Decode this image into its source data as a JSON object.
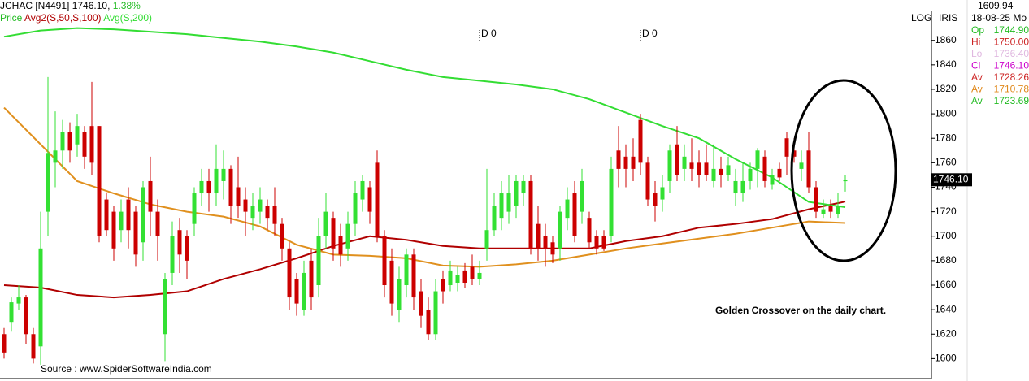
{
  "chart_data": {
    "type": "candlestick",
    "title": "JCHAC [N4491] 1746.10,",
    "change": "1.38%",
    "change_color": "#22bb22",
    "price_label": "Price",
    "up_color": "#33e033",
    "down_color": "#cc0000",
    "open": [
      1620,
      1630,
      1645,
      1650,
      1620,
      1610,
      1720,
      1760,
      1770,
      1785,
      1775,
      1785,
      1790,
      1790,
      1730,
      1720,
      1705,
      1730,
      1720,
      1695,
      1745,
      1720,
      1620,
      1670,
      1705,
      1700,
      1710,
      1735,
      1745,
      1735,
      1745,
      1755,
      1740,
      1730,
      1715,
      1720,
      1725,
      1725,
      1710,
      1690,
      1665,
      1640,
      1680,
      1660,
      1700,
      1715,
      1700,
      1690,
      1710,
      1730,
      1740,
      1760,
      1700,
      1680,
      1640,
      1660,
      1685,
      1655,
      1640,
      1620,
      1665,
      1660,
      1662,
      1672,
      1675,
      1665,
      1690,
      1705,
      1715,
      1720,
      1725,
      1735,
      1745,
      1710,
      1700,
      1695,
      1690,
      1715,
      1735,
      1720,
      1715,
      1700,
      1700,
      1700,
      1770,
      1765,
      1765,
      1795,
      1760,
      1735,
      1730,
      1745,
      1775,
      1755,
      1760,
      1760,
      1760,
      1745,
      1755,
      1750,
      1735,
      1735,
      1745,
      1755,
      1765,
      1742,
      1755,
      1780,
      1770,
      1755,
      1770,
      1740,
      1718,
      1725,
      1718,
      1744.9
    ],
    "high": [
      1625,
      1650,
      1660,
      1652,
      1625,
      1720,
      1830,
      1802,
      1795,
      1793,
      1800,
      1790,
      1826,
      1790,
      1735,
      1725,
      1730,
      1740,
      1725,
      1745,
      1765,
      1730,
      1670,
      1712,
      1715,
      1705,
      1740,
      1755,
      1755,
      1775,
      1770,
      1758,
      1765,
      1740,
      1735,
      1740,
      1730,
      1740,
      1715,
      1695,
      1670,
      1680,
      1690,
      1715,
      1735,
      1720,
      1710,
      1720,
      1745,
      1750,
      1745,
      1770,
      1705,
      1690,
      1675,
      1690,
      1690,
      1665,
      1650,
      1665,
      1672,
      1680,
      1675,
      1678,
      1685,
      1680,
      1755,
      1735,
      1745,
      1750,
      1750,
      1750,
      1750,
      1725,
      1710,
      1700,
      1725,
      1740,
      1745,
      1755,
      1720,
      1705,
      1705,
      1765,
      1790,
      1775,
      1780,
      1800,
      1765,
      1745,
      1750,
      1775,
      1790,
      1775,
      1780,
      1770,
      1775,
      1775,
      1765,
      1765,
      1755,
      1760,
      1760,
      1772,
      1770,
      1755,
      1760,
      1785,
      1780,
      1770,
      1785,
      1745,
      1730,
      1730,
      1735,
      1750
    ],
    "low": [
      1600,
      1622,
      1640,
      1612,
      1596,
      1595,
      1700,
      1740,
      1755,
      1760,
      1765,
      1755,
      1750,
      1695,
      1700,
      1680,
      1695,
      1690,
      1675,
      1680,
      1700,
      1680,
      1598,
      1660,
      1670,
      1665,
      1700,
      1725,
      1720,
      1725,
      1730,
      1710,
      1715,
      1700,
      1705,
      1710,
      1705,
      1700,
      1680,
      1640,
      1635,
      1635,
      1640,
      1650,
      1690,
      1680,
      1675,
      1680,
      1700,
      1720,
      1710,
      1695,
      1650,
      1635,
      1630,
      1650,
      1640,
      1625,
      1615,
      1615,
      1645,
      1655,
      1655,
      1658,
      1660,
      1660,
      1680,
      1700,
      1705,
      1710,
      1715,
      1725,
      1685,
      1680,
      1675,
      1678,
      1680,
      1705,
      1695,
      1710,
      1690,
      1685,
      1688,
      1695,
      1740,
      1740,
      1745,
      1750,
      1725,
      1712,
      1720,
      1735,
      1745,
      1745,
      1745,
      1740,
      1745,
      1740,
      1740,
      1745,
      1725,
      1728,
      1738,
      1740,
      1740,
      1738,
      1745,
      1750,
      1760,
      1745,
      1735,
      1715,
      1715,
      1715,
      1715,
      1736.4
    ],
    "close": [
      1605,
      1646,
      1650,
      1620,
      1600,
      1690,
      1768,
      1770,
      1785,
      1770,
      1790,
      1765,
      1760,
      1700,
      1705,
      1690,
      1720,
      1705,
      1685,
      1740,
      1720,
      1700,
      1665,
      1700,
      1685,
      1680,
      1735,
      1745,
      1735,
      1755,
      1755,
      1725,
      1725,
      1720,
      1725,
      1730,
      1715,
      1710,
      1690,
      1650,
      1645,
      1670,
      1650,
      1700,
      1720,
      1690,
      1685,
      1710,
      1735,
      1745,
      1720,
      1700,
      1660,
      1645,
      1665,
      1685,
      1650,
      1635,
      1620,
      1655,
      1655,
      1672,
      1668,
      1662,
      1665,
      1670,
      1705,
      1725,
      1735,
      1735,
      1745,
      1745,
      1690,
      1690,
      1690,
      1685,
      1720,
      1730,
      1700,
      1745,
      1695,
      1690,
      1690,
      1755,
      1755,
      1755,
      1755,
      1760,
      1730,
      1725,
      1740,
      1770,
      1750,
      1765,
      1755,
      1750,
      1750,
      1755,
      1750,
      1758,
      1745,
      1745,
      1755,
      1770,
      1745,
      1750,
      1748,
      1765,
      1765,
      1760,
      1740,
      1720,
      1722,
      1720,
      1725,
      1746.1
    ],
    "series": [
      {
        "name": "Avg2(S,50,S,100)",
        "color": "#b00000",
        "x": [
          0,
          5,
          10,
          15,
          20,
          25,
          30,
          35,
          40,
          45,
          50,
          55,
          60,
          65,
          70,
          75,
          80,
          85,
          90,
          95,
          100,
          105,
          110,
          115
        ],
        "values": [
          1660,
          1658,
          1652,
          1650,
          1652,
          1655,
          1665,
          1673,
          1682,
          1692,
          1700,
          1697,
          1692,
          1690,
          1690,
          1690,
          1690,
          1696,
          1700,
          1707,
          1710,
          1714,
          1722,
          1728.26
        ]
      },
      {
        "color": "#e0901e",
        "x": [
          0,
          5,
          10,
          15,
          20,
          25,
          30,
          35,
          40,
          45,
          50,
          55,
          60,
          65,
          70,
          75,
          80,
          85,
          90,
          95,
          100,
          105,
          110,
          115
        ],
        "values": [
          1805,
          1775,
          1745,
          1735,
          1726,
          1720,
          1716,
          1708,
          1693,
          1685,
          1684,
          1682,
          1676,
          1675,
          1677,
          1680,
          1685,
          1690,
          1694,
          1698,
          1702,
          1707,
          1712,
          1710.78
        ]
      },
      {
        "name": "Avg(S,200)",
        "color": "#33dd33",
        "x": [
          0,
          5,
          10,
          15,
          20,
          25,
          30,
          35,
          40,
          45,
          50,
          55,
          60,
          65,
          70,
          75,
          80,
          85,
          90,
          95,
          100,
          105,
          110,
          115
        ],
        "values": [
          1863,
          1868,
          1870,
          1869,
          1867,
          1865,
          1862,
          1859,
          1855,
          1850,
          1843,
          1836,
          1830,
          1827,
          1824,
          1820,
          1812,
          1801,
          1790,
          1780,
          1763,
          1748,
          1728,
          1723.69
        ]
      }
    ],
    "markers": [
      {
        "x": 65,
        "label": "D 0"
      },
      {
        "x": 87,
        "label": "D 0"
      }
    ],
    "ylim": [
      1583,
      1893
    ],
    "yticks": [
      1600,
      1620,
      1640,
      1660,
      1680,
      1700,
      1720,
      1740,
      1760,
      1780,
      1800,
      1820,
      1840,
      1860
    ],
    "toolbar": [
      "LOG",
      "IRIS"
    ],
    "last_price_label": "1746.10",
    "info_panel": {
      "top": "1609.94",
      "date": "18-08-25 Mo",
      "rows": [
        {
          "label": "Op",
          "text": "1744.90",
          "color": "#22bb22"
        },
        {
          "label": "Hi",
          "text": "1750.00",
          "color": "#cc2222"
        },
        {
          "label": "Lo",
          "text": "1736.40",
          "color": "#e0b8e0"
        },
        {
          "label": "Cl",
          "text": "1746.10",
          "color": "#cc00cc"
        },
        {
          "label": "Av",
          "text": "1728.26",
          "color": "#cc2222"
        },
        {
          "label": "Av",
          "text": "1710.78",
          "color": "#e08a1e"
        },
        {
          "label": "Av",
          "text": "1723.69",
          "color": "#22bb22"
        }
      ]
    },
    "annotation": "Golden Crossover on the daily chart.",
    "source": "Source : www.SpiderSoftwareIndia.com"
  }
}
